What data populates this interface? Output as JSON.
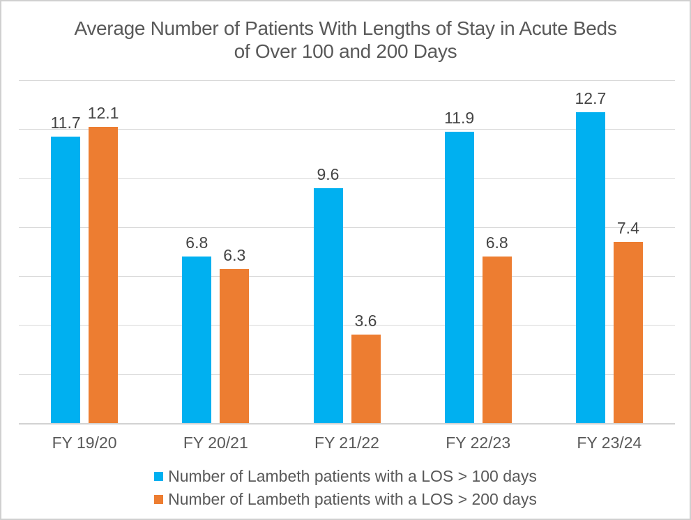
{
  "chart_data": {
    "type": "bar",
    "title": "Average Number of Patients With Lengths of Stay in Acute Beds of Over 100 and 200 Days",
    "title_lines": [
      "Average Number of Patients With Lengths of Stay in Acute Beds",
      "of Over 100 and 200 Days"
    ],
    "categories": [
      "FY 19/20",
      "FY 20/21",
      "FY 21/22",
      "FY 22/23",
      "FY 23/24"
    ],
    "series": [
      {
        "name": "Number of Lambeth patients with a LOS > 100 days",
        "color": "#00B0F0",
        "values": [
          11.7,
          6.8,
          9.6,
          11.9,
          12.7
        ]
      },
      {
        "name": "Number of Lambeth patients with a LOS > 200 days",
        "color": "#ED7D31",
        "values": [
          12.1,
          6.3,
          3.6,
          6.8,
          7.4
        ]
      }
    ],
    "xlabel": "",
    "ylabel": "",
    "ylim": [
      0,
      14
    ],
    "gridline_step": 2,
    "grid": true,
    "y_axis_labels_visible": false,
    "data_labels": true,
    "legend_position": "bottom"
  },
  "styles": {
    "gridline_color": "#D9D9D9",
    "axis_line_color": "#D2D2D2",
    "title_color": "#595959",
    "tick_label_color": "#595959",
    "data_label_color": "#444444",
    "border_color": "#D0D0D0",
    "background": "#FFFFFF"
  }
}
